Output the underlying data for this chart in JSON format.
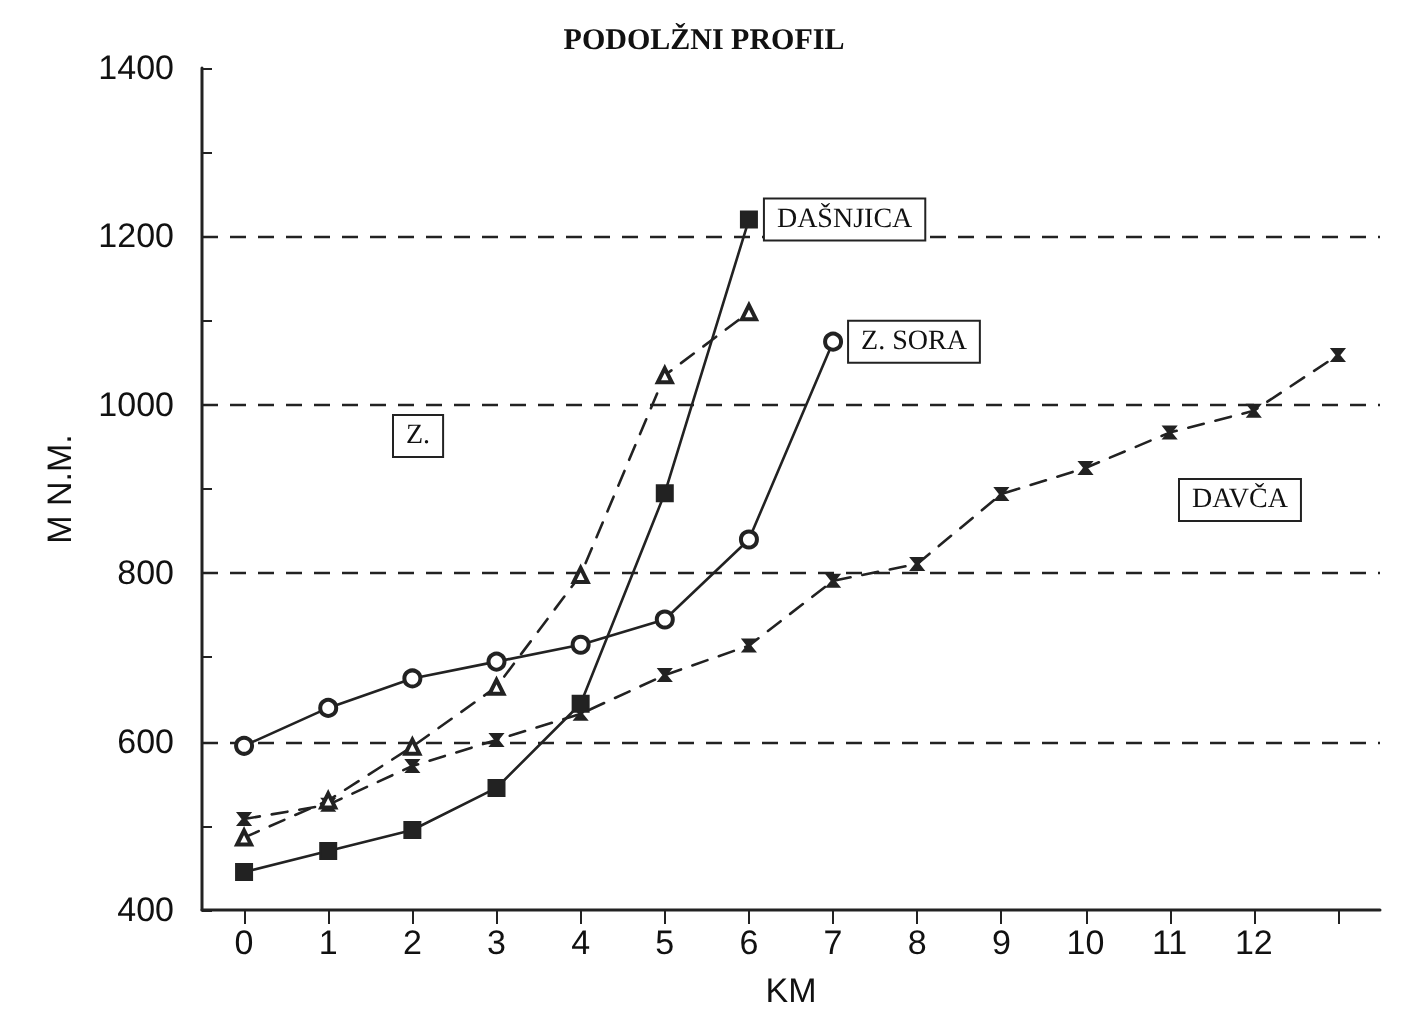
{
  "chart_data": {
    "type": "line",
    "title": "PODOLŽNI PROFIL",
    "xlabel": "KM",
    "ylabel": "M N.M.",
    "xlim": [
      -0.5,
      13.5
    ],
    "xticks": [
      0,
      1,
      2,
      3,
      4,
      5,
      6,
      7,
      8,
      9,
      10,
      11,
      12,
      {
        "value": 13,
        "label": null
      }
    ],
    "ylim": [
      400,
      1400
    ],
    "yticks": [
      400,
      {
        "value": 500,
        "label": null
      },
      600,
      {
        "value": 700,
        "label": null
      },
      800,
      {
        "value": 900,
        "label": null
      },
      1000,
      {
        "value": 1100,
        "label": null
      },
      1200,
      {
        "value": 1300,
        "label": null
      },
      1400
    ],
    "grid": "y",
    "series": [
      {
        "color": "#222222",
        "marker": "square",
        "line_style": "solid",
        "x": [
          0,
          1,
          2,
          3,
          4,
          5,
          6
        ],
        "values": [
          445,
          470,
          495,
          545,
          645,
          895,
          1220
        ]
      },
      {
        "color": "#222222",
        "marker": "circle",
        "line_style": "solid",
        "x": [
          0,
          1,
          2,
          3,
          4,
          5,
          6,
          7
        ],
        "values": [
          595,
          640,
          675,
          695,
          715,
          745,
          840,
          1075
        ]
      },
      {
        "color": "#222222",
        "marker": "triangle",
        "line_style": "dashed",
        "x": [
          0,
          1,
          2,
          3,
          4,
          5,
          6
        ],
        "values": [
          486,
          530,
          594,
          665,
          798,
          1035,
          1110
        ]
      },
      {
        "color": "#222222",
        "marker": "cross",
        "line_style": "dashed",
        "x": [
          0,
          1,
          2,
          3,
          4,
          5,
          6,
          7,
          8,
          9,
          10,
          11,
          12,
          13
        ],
        "values": [
          508,
          525,
          571,
          602,
          633,
          679,
          714,
          791,
          811,
          894,
          925,
          967,
          993,
          1059
        ]
      }
    ],
    "annotations": [
      {
        "text": "DAŠNJICA",
        "x": 6,
        "y": 1220
      },
      {
        "text": "Z. SORA",
        "x": 7,
        "y": 1075
      },
      "Z.",
      "DAVČA"
    ]
  }
}
